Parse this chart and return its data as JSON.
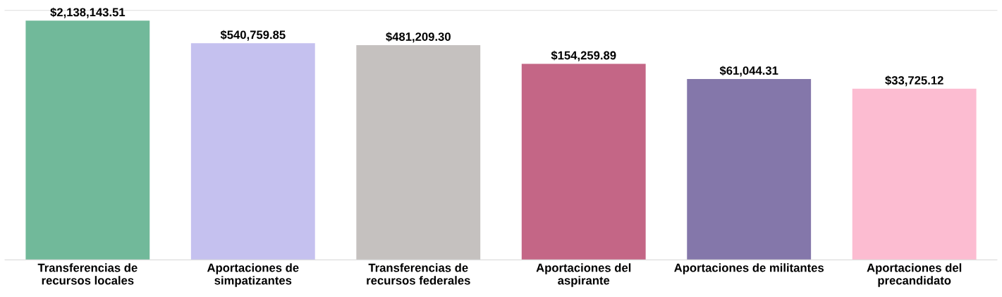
{
  "chart_data": {
    "type": "bar",
    "log": true,
    "categories": [
      "Transferencias de\nrecursos locales",
      "Aportaciones de\nsimpatizantes",
      "Transferencias de\nrecursos federales",
      "Aportaciones del\naspirante",
      "Aportaciones de militantes",
      "Aportaciones del\nprecandidato"
    ],
    "values": [
      2138143.51,
      540759.85,
      481209.3,
      154259.89,
      61044.31,
      33725.12
    ],
    "colors": [
      "#71b99a",
      "#c5c1ef",
      "#c5c1bf",
      "#c46686",
      "#8477aa",
      "#fcbcd1"
    ],
    "value_labels": [
      "$2,138,143.51",
      "$540,759.85",
      "$481,209.30",
      "$154,259.89",
      "$61,044.31",
      "$33,725.12"
    ],
    "ylim": [
      1,
      4000000
    ],
    "tick_labels": "x",
    "grid": false
  }
}
